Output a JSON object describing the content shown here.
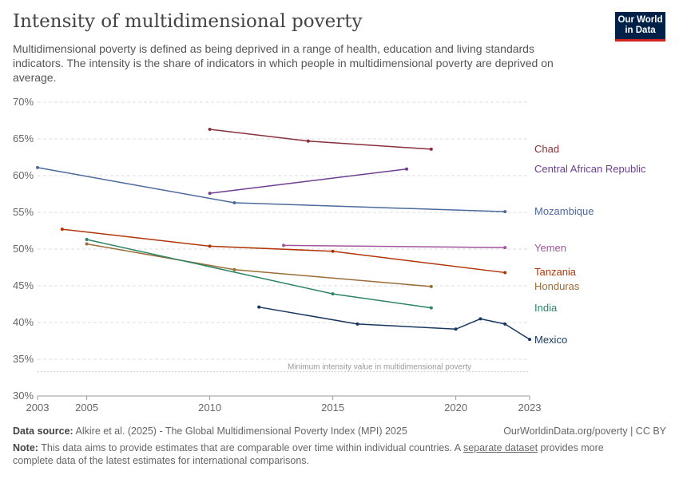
{
  "title": "Intensity of multidimensional poverty",
  "subtitle": "Multidimensional poverty is defined as being deprived in a range of health, education and living standards indicators. The intensity is the share of indicators in which people in multidimensional poverty are deprived on average.",
  "logo": "Our World in Data",
  "footer": {
    "source_label": "Data source:",
    "source": "Alkire et al. (2025) - The Global Multidimensional Poverty Index (MPI) 2025",
    "credit": "OurWorldinData.org/poverty | CC BY",
    "note_label": "Note:",
    "note_pre": "This data aims to provide estimates that are comparable over time within individual countries. A ",
    "note_link": "separate dataset",
    "note_post": " provides more complete data of the latest estimates for international comparisons."
  },
  "chart_data": {
    "type": "line",
    "title": "Intensity of multidimensional poverty",
    "xlim": [
      2003,
      2023
    ],
    "ylim": [
      30,
      70
    ],
    "x_ticks": [
      2003,
      2005,
      2010,
      2015,
      2020,
      2023
    ],
    "y_ticks": [
      30,
      35,
      40,
      45,
      50,
      55,
      60,
      65,
      70
    ],
    "y_tick_labels": [
      "30%",
      "35%",
      "40%",
      "45%",
      "50%",
      "55%",
      "60%",
      "65%",
      "70%"
    ],
    "grid": "horizontal dashed",
    "legend": "right (line-end labels)",
    "annotation": {
      "text": "Minimum intensity value in multidimensional poverty",
      "y": 33.3
    },
    "series": [
      {
        "name": "Chad",
        "color": "#883039",
        "points": [
          [
            2010,
            66.3
          ],
          [
            2014,
            64.7
          ],
          [
            2019,
            63.6
          ]
        ]
      },
      {
        "name": "Central African Republic",
        "color": "#6d3e91",
        "points": [
          [
            2010,
            57.6
          ],
          [
            2018,
            60.9
          ]
        ]
      },
      {
        "name": "Mozambique",
        "color": "#4c6a9c",
        "points": [
          [
            2003,
            61.1
          ],
          [
            2011,
            56.3
          ],
          [
            2022,
            55.1
          ]
        ]
      },
      {
        "name": "Yemen",
        "color": "#a2559c",
        "points": [
          [
            2013,
            50.5
          ],
          [
            2022,
            50.2
          ]
        ]
      },
      {
        "name": "Tanzania",
        "color": "#b13507",
        "points": [
          [
            2004,
            52.7
          ],
          [
            2010,
            50.4
          ],
          [
            2015,
            49.7
          ],
          [
            2022,
            46.8
          ]
        ]
      },
      {
        "name": "Honduras",
        "color": "#996d39",
        "points": [
          [
            2005,
            50.7
          ],
          [
            2011,
            47.2
          ],
          [
            2019,
            44.9
          ]
        ]
      },
      {
        "name": "India",
        "color": "#2c8465",
        "points": [
          [
            2005,
            51.3
          ],
          [
            2015,
            43.9
          ],
          [
            2019,
            42.0
          ]
        ]
      },
      {
        "name": "Mexico",
        "color": "#18375f",
        "points": [
          [
            2012,
            42.1
          ],
          [
            2016,
            39.8
          ],
          [
            2020,
            39.1
          ],
          [
            2021,
            40.5
          ],
          [
            2022,
            39.8
          ],
          [
            2023,
            37.7
          ]
        ]
      }
    ]
  }
}
